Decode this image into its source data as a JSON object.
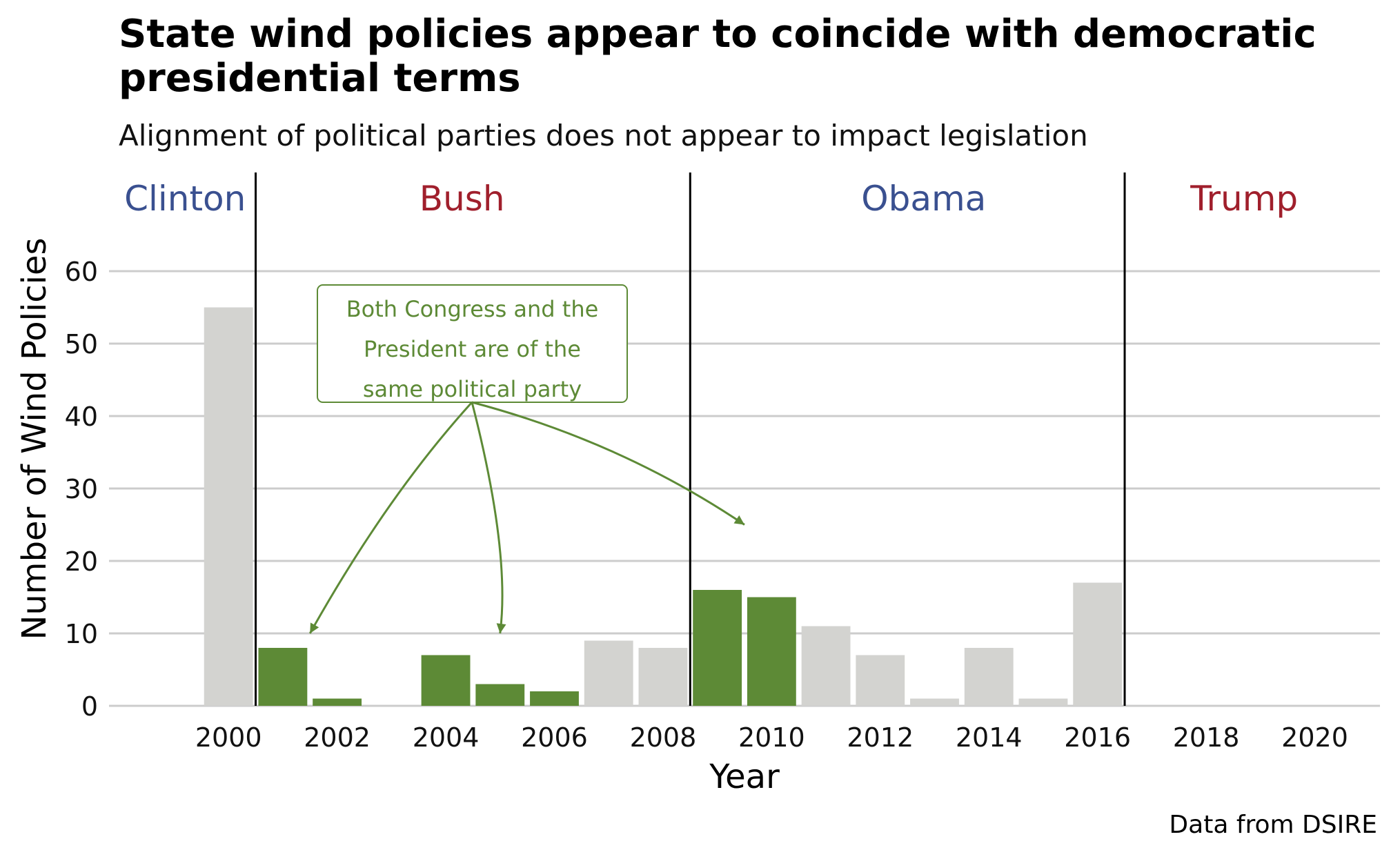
{
  "chart_data": {
    "type": "bar",
    "title": "State wind policies appear to coincide with democratic presidential terms",
    "subtitle": "Alignment of political parties does not appear to impact legislation",
    "xlabel": "Year",
    "ylabel": "Number of Wind Policies",
    "caption": "Data from DSIRE",
    "x": [
      2000,
      2001,
      2002,
      2003,
      2004,
      2005,
      2006,
      2007,
      2008,
      2009,
      2010,
      2011,
      2012,
      2013,
      2014,
      2015,
      2016
    ],
    "values": [
      55,
      8,
      1,
      0,
      7,
      3,
      2,
      9,
      8,
      16,
      15,
      11,
      7,
      1,
      8,
      1,
      17
    ],
    "same_party": [
      false,
      true,
      true,
      false,
      true,
      true,
      true,
      false,
      false,
      true,
      true,
      false,
      false,
      false,
      false,
      false,
      false
    ],
    "colors": {
      "same_party": "#5d8a36",
      "other": "#d3d3d0",
      "democrat": "#3a5090",
      "republican": "#a01f2c",
      "annotation": "#5d8a36",
      "grid": "#cccccc",
      "divider": "#000000"
    },
    "xlim": [
      1997.8,
      2021.2
    ],
    "ylim": [
      0,
      60
    ],
    "xticks": [
      2000,
      2002,
      2004,
      2006,
      2008,
      2010,
      2012,
      2014,
      2016,
      2018,
      2020
    ],
    "yticks": [
      0,
      10,
      20,
      30,
      40,
      50,
      60
    ],
    "grid": "horizontal",
    "presidents": [
      {
        "name": "Clinton",
        "party": "democrat",
        "label_x": 1999.2
      },
      {
        "name": "Bush",
        "party": "republican",
        "label_x": 2004.3
      },
      {
        "name": "Obama",
        "party": "democrat",
        "label_x": 2012.8
      },
      {
        "name": "Trump",
        "party": "republican",
        "label_x": 2018.7
      }
    ],
    "term_boundaries": [
      2000.5,
      2008.5,
      2016.5
    ],
    "annotation": {
      "lines": [
        "Both Congress and the",
        "President are of the",
        "same political party"
      ],
      "arrow_targets": [
        [
          2001.5,
          10
        ],
        [
          2005,
          10
        ],
        [
          2009.5,
          25
        ]
      ]
    }
  }
}
